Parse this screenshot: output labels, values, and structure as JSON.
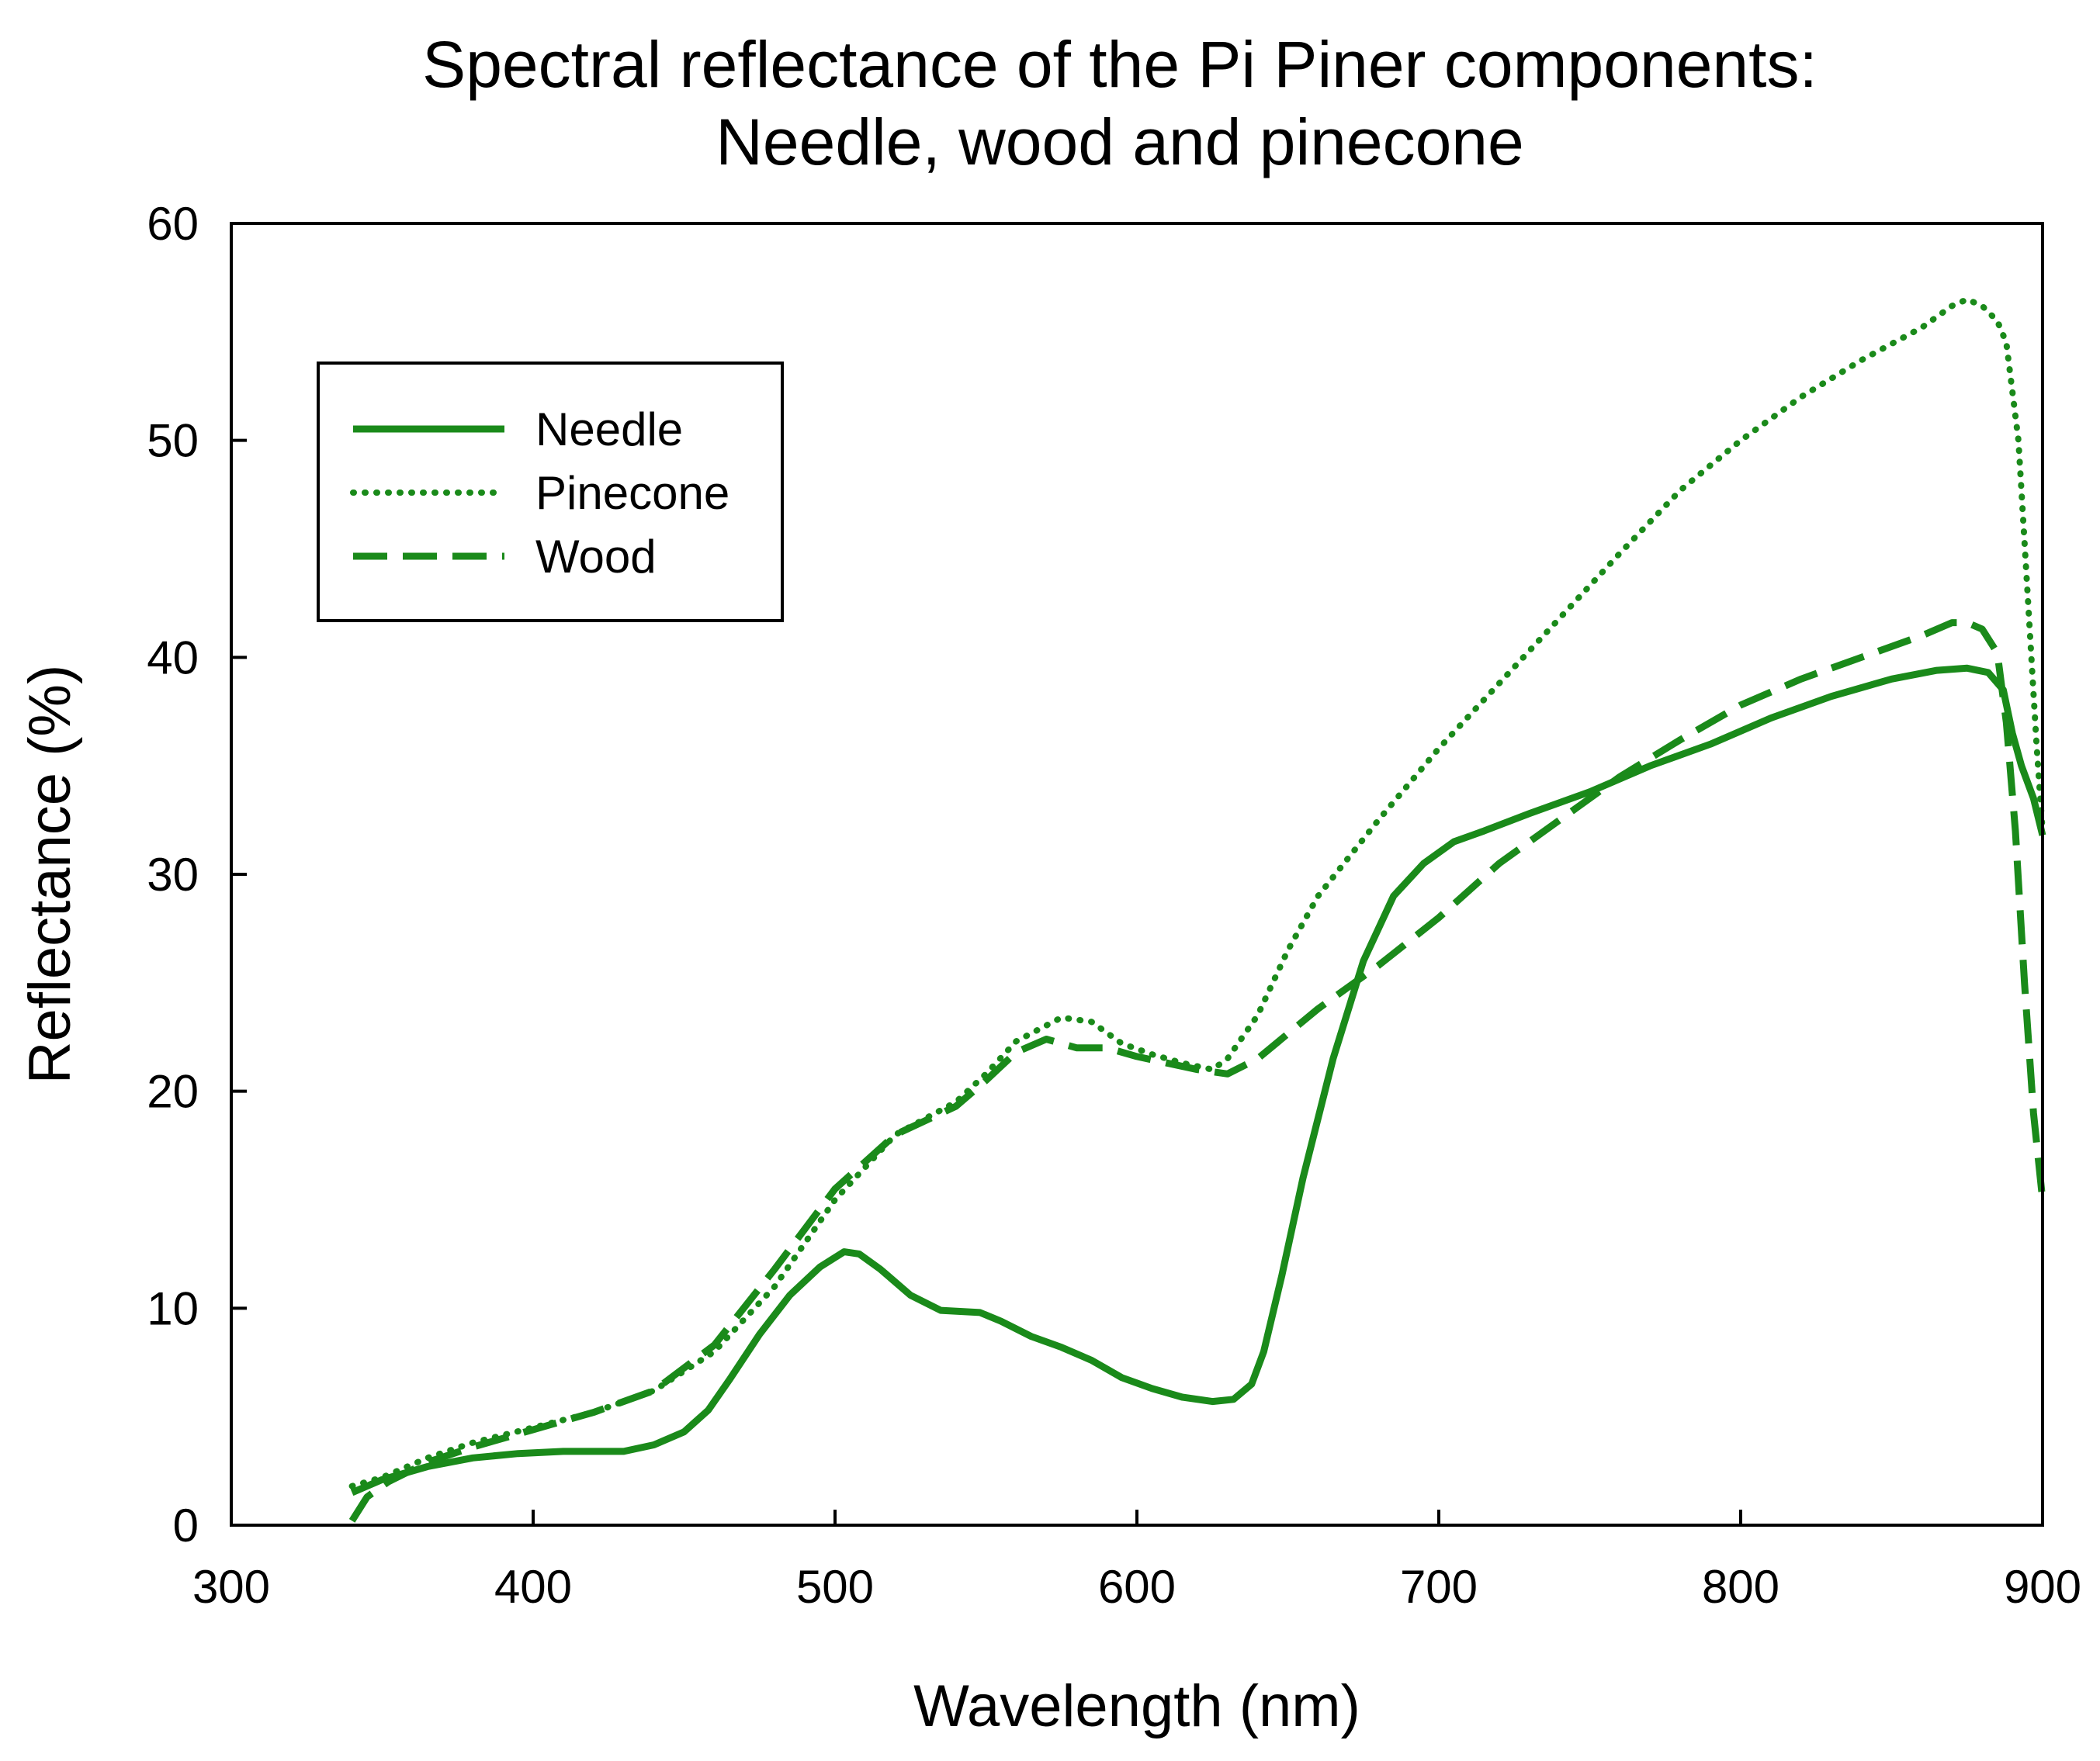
{
  "chart_data": {
    "type": "line",
    "title": "Spectral reflectance of the Pi Piner components:",
    "subtitle": "Needle, wood and pinecone",
    "xlabel": "Wavelength (nm)",
    "ylabel": "Reflectance (%)",
    "xlim": [
      300,
      900
    ],
    "ylim": [
      0,
      60
    ],
    "xticks": [
      300,
      400,
      500,
      600,
      700,
      800,
      900
    ],
    "yticks": [
      0,
      10,
      20,
      30,
      40,
      50,
      60
    ],
    "grid": false,
    "legend_position": "top-left",
    "line_color": "#1a8a1a",
    "series": [
      {
        "name": "Needle",
        "style": "solid",
        "x": [
          340,
          350,
          365,
          380,
          395,
          410,
          430,
          440,
          450,
          458,
          465,
          475,
          485,
          495,
          503,
          508,
          515,
          525,
          535,
          548,
          555,
          565,
          575,
          585,
          595,
          605,
          615,
          625,
          632,
          638,
          642,
          648,
          655,
          665,
          675,
          685,
          695,
          705,
          715,
          730,
          750,
          770,
          790,
          810,
          830,
          850,
          865,
          875,
          882,
          887,
          890,
          893,
          897,
          900
        ],
        "y": [
          1.5,
          2.1,
          2.7,
          3.1,
          3.3,
          3.4,
          3.4,
          3.7,
          4.3,
          5.3,
          6.7,
          8.8,
          10.6,
          11.9,
          12.6,
          12.5,
          11.8,
          10.6,
          9.9,
          9.8,
          9.4,
          8.7,
          8.2,
          7.6,
          6.8,
          6.3,
          5.9,
          5.7,
          5.8,
          6.5,
          8.0,
          11.5,
          16.0,
          21.5,
          26.0,
          29.0,
          30.5,
          31.5,
          32.0,
          32.8,
          33.8,
          35.0,
          36.0,
          37.2,
          38.2,
          39.0,
          39.4,
          39.5,
          39.3,
          38.5,
          36.5,
          35.0,
          33.5,
          31.8
        ]
      },
      {
        "name": "Pinecone",
        "style": "dotted",
        "x": [
          340,
          350,
          365,
          380,
          400,
          420,
          440,
          460,
          480,
          500,
          520,
          540,
          550,
          560,
          575,
          585,
          595,
          605,
          615,
          625,
          630,
          640,
          650,
          660,
          680,
          700,
          720,
          740,
          760,
          780,
          800,
          820,
          840,
          860,
          870,
          875,
          880,
          885,
          888,
          892,
          895,
          898,
          900
        ],
        "y": [
          1.8,
          2.2,
          3.1,
          3.8,
          4.5,
          5.2,
          6.2,
          8.0,
          11.0,
          15.0,
          18.0,
          19.5,
          20.8,
          22.3,
          23.4,
          23.2,
          22.2,
          21.7,
          21.3,
          21.0,
          21.5,
          23.5,
          26.5,
          29.0,
          32.5,
          35.8,
          38.8,
          41.8,
          44.8,
          47.7,
          50.0,
          52.0,
          53.7,
          55.2,
          56.2,
          56.5,
          56.2,
          55.5,
          54.5,
          50.0,
          43.0,
          36.0,
          32.0
        ]
      },
      {
        "name": "Wood",
        "style": "dashed",
        "x": [
          340,
          345,
          352,
          365,
          380,
          400,
          420,
          440,
          460,
          480,
          500,
          520,
          540,
          550,
          560,
          570,
          580,
          590,
          600,
          610,
          620,
          630,
          640,
          660,
          680,
          700,
          720,
          740,
          760,
          780,
          800,
          820,
          840,
          860,
          870,
          875,
          880,
          885,
          888,
          891,
          894,
          897,
          900
        ],
        "y": [
          0.2,
          1.3,
          2.0,
          2.9,
          3.6,
          4.4,
          5.2,
          6.2,
          8.3,
          11.8,
          15.5,
          18.0,
          19.3,
          20.5,
          21.8,
          22.4,
          22.0,
          22.0,
          21.6,
          21.3,
          21.0,
          20.8,
          21.5,
          23.8,
          25.8,
          28.0,
          30.5,
          32.5,
          34.5,
          36.2,
          37.8,
          39.0,
          40.0,
          41.0,
          41.6,
          41.6,
          41.3,
          40.2,
          37.0,
          32.0,
          25.0,
          19.0,
          15.0
        ]
      }
    ]
  }
}
